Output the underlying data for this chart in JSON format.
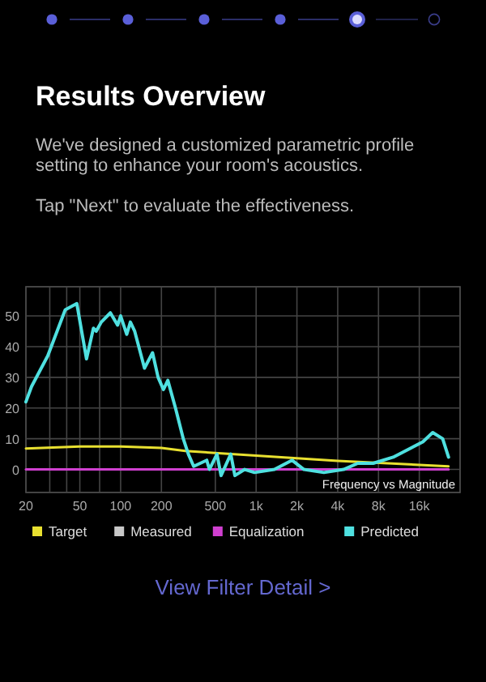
{
  "chart_data": {
    "type": "line",
    "title": "Results Overview",
    "subtitle": "We've designed a customized parametric profile\nsetting to enhance your room's acoustics.\n\nTap \"Next\" to evaluate the effectiveness.",
    "series": [
      {
        "name": "Target",
        "color": "#e8e030",
        "x": [
          20,
          50,
          100,
          200,
          300,
          1000,
          4000,
          26300
        ],
        "values": [
          6.8,
          7.5,
          7.5,
          7,
          6,
          4.5,
          2.8,
          1
        ]
      },
      {
        "name": "Measured",
        "color": "#c8c8c8"
      },
      {
        "name": "Equalization",
        "color": "#d040d0",
        "x": [
          20,
          26300
        ],
        "values": [
          0,
          0
        ]
      },
      {
        "name": "Predicted",
        "color": "#4fe0e0",
        "x": [
          20,
          22,
          29,
          39,
          47.5,
          56,
          63,
          66,
          72,
          84,
          95,
          100,
          111,
          118,
          127,
          150,
          172,
          189,
          207,
          223,
          254,
          290,
          316,
          346,
          432,
          452,
          514,
          551,
          650,
          697,
          823,
          973,
          1366,
          1840,
          2250,
          3160,
          4430,
          5620,
          7300,
          10270,
          17000,
          20100,
          23800,
          26300
        ],
        "values": [
          22,
          27,
          37,
          52,
          54,
          36,
          46,
          45,
          48,
          51,
          47,
          50,
          44,
          48,
          45,
          33,
          38,
          30,
          26,
          29,
          20,
          10,
          5,
          1,
          3,
          0,
          5,
          -2,
          5,
          -2,
          0,
          -1,
          0,
          3,
          0,
          -1,
          0,
          2,
          2,
          4,
          9,
          12,
          10,
          4
        ]
      }
    ],
    "xlim": [
      20,
      32000
    ],
    "xticks": [
      20,
      {
        "value": 30,
        "label": null
      },
      {
        "value": 40,
        "label": null
      },
      50,
      {
        "value": 70,
        "label": null
      },
      100,
      200,
      500,
      {
        "value": 1000,
        "label": "1k"
      },
      {
        "value": 2000,
        "label": "2k"
      },
      {
        "value": 4000,
        "label": "4k"
      },
      {
        "value": 8000,
        "label": "8k"
      },
      {
        "value": 16000,
        "label": "16k"
      }
    ],
    "ylim": [
      -7.5,
      59.5
    ],
    "yticks": [
      0,
      10,
      20,
      30,
      40,
      50
    ],
    "grid": true,
    "log": "x",
    "legend": "bottom",
    "marker": "none",
    "line_style": "solid",
    "annotations": [
      "Frequency vs Magnitude",
      "View Filter Detail >"
    ]
  }
}
